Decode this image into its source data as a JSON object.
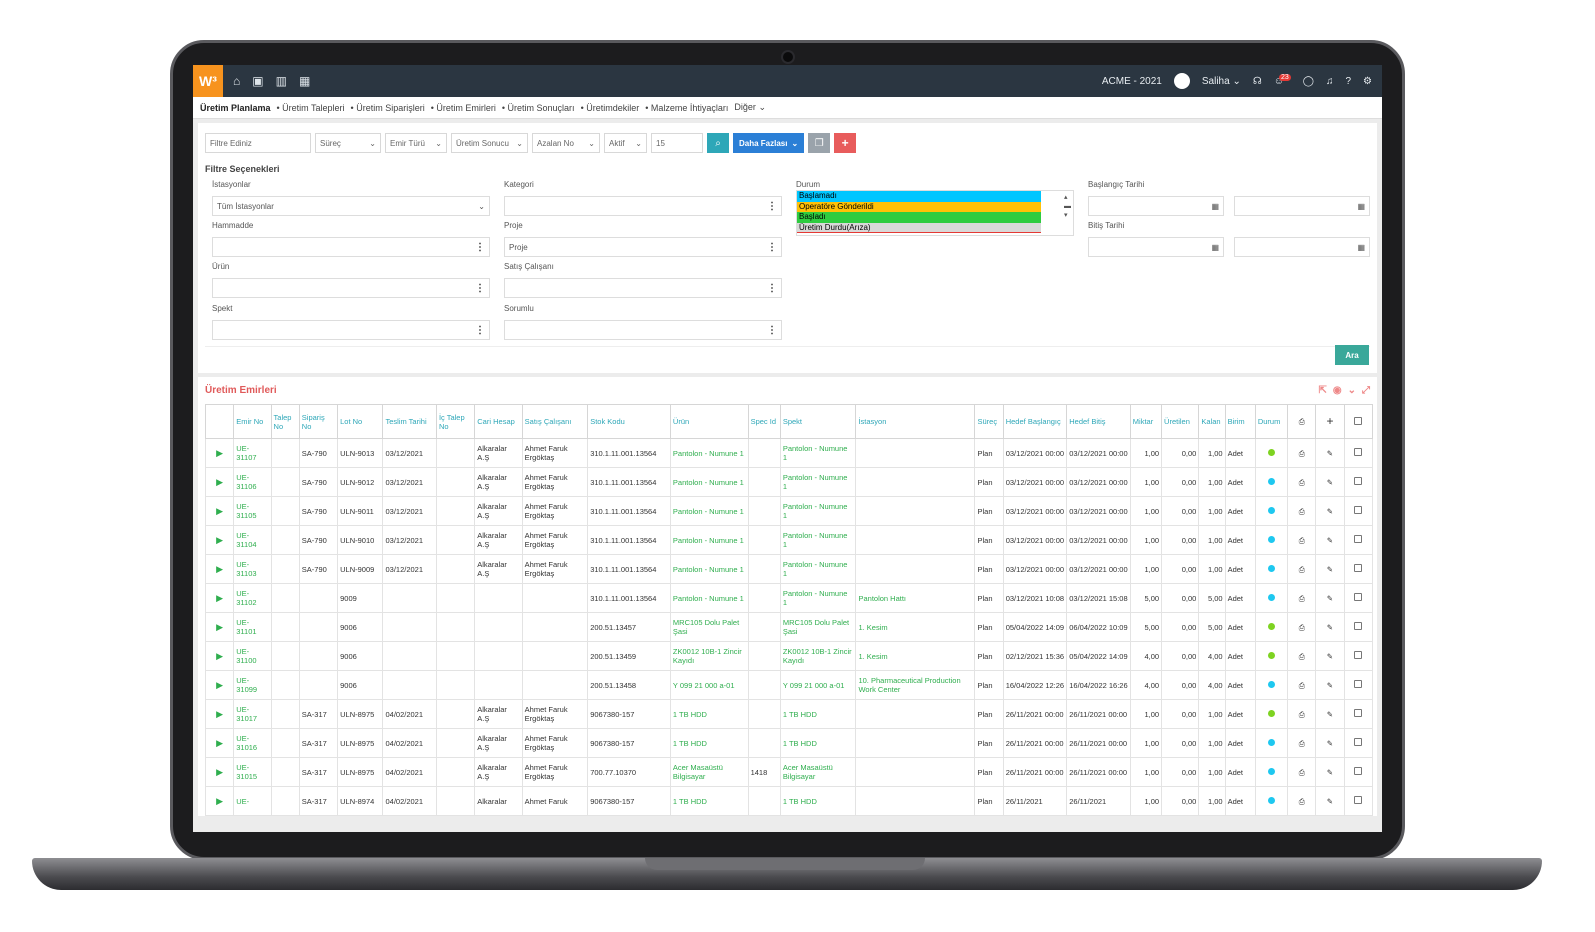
{
  "app": {
    "logo": "W³",
    "company": "ACME - 2021",
    "user": "Saliha",
    "notification_count": "23"
  },
  "menu": {
    "items": [
      "Üretim Planlama",
      "• Üretim Talepleri",
      "• Üretim Siparişleri",
      "• Üretim Emirleri",
      "• Üretim Sonuçları",
      "• Üretimdekiler",
      "• Malzeme İhtiyaçları",
      "Diğer"
    ]
  },
  "filterbar": {
    "placeholder": "Filtre Ediniz",
    "surec": "Süreç",
    "emir_turu": "Emir Türü",
    "uretim_sonucu": "Üretim Sonucu",
    "siralama": "Azalan No",
    "aktif": "Aktif",
    "kayit": "15",
    "more_label": "Daha Fazlası"
  },
  "filter_options": {
    "title": "Filtre Seçenekleri",
    "istasyonlar_label": "İstasyonlar",
    "istasyonlar_value": "Tüm İstasyonlar",
    "hammadde_label": "Hammadde",
    "urun_label": "Ürün",
    "spekt_label": "Spekt",
    "kategori_label": "Kategori",
    "proje_label": "Proje",
    "proje_value": "Proje",
    "satis_label": "Satış Çalışanı",
    "sorumlu_label": "Sorumlu",
    "durum_label": "Durum",
    "durum_options": [
      {
        "label": "Başlamadı",
        "color": "#00c6ff"
      },
      {
        "label": "Operatöre Gönderildi",
        "color": "#ffc107"
      },
      {
        "label": "Başladı",
        "color": "#2ecc40"
      },
      {
        "label": "Üretim Durdu(Arıza)",
        "color": "#d9d9d9"
      }
    ],
    "baslangic_label": "Başlangıç Tarihi",
    "bitis_label": "Bitiş Tarihi",
    "ara_label": "Ara"
  },
  "grid": {
    "title": "Üretim Emirleri",
    "columns": [
      "",
      "Emir No",
      "Talep No",
      "Sipariş No",
      "Lot No",
      "Teslim Tarihi",
      "İç Talep No",
      "Cari Hesap",
      "Satış Çalışanı",
      "Stok Kodu",
      "Ürün",
      "Spec Id",
      "Spekt",
      "İstasyon",
      "Süreç",
      "Hedef Başlangıç",
      "Hedef Bitiş",
      "Miktar",
      "Üretilen",
      "Kalan",
      "Birim",
      "Durum",
      "",
      "",
      ""
    ],
    "rows": [
      [
        "UE-31107",
        "",
        "SA-790",
        "ULN-9013",
        "03/12/2021",
        "",
        "Alkaralar A.Ş",
        "Ahmet Faruk Ergöktaş",
        "310.1.11.001.13564",
        "Pantolon - Numune 1",
        "",
        "Pantolon - Numune 1",
        "",
        "Plan",
        "03/12/2021 00:00",
        "03/12/2021 00:00",
        "1,00",
        "0,00",
        "1,00",
        "Adet",
        "#7ed321"
      ],
      [
        "UE-31106",
        "",
        "SA-790",
        "ULN-9012",
        "03/12/2021",
        "",
        "Alkaralar A.Ş",
        "Ahmet Faruk Ergöktaş",
        "310.1.11.001.13564",
        "Pantolon - Numune 1",
        "",
        "Pantolon - Numune 1",
        "",
        "Plan",
        "03/12/2021 00:00",
        "03/12/2021 00:00",
        "1,00",
        "0,00",
        "1,00",
        "Adet",
        "#1ec8f0"
      ],
      [
        "UE-31105",
        "",
        "SA-790",
        "ULN-9011",
        "03/12/2021",
        "",
        "Alkaralar A.Ş",
        "Ahmet Faruk Ergöktaş",
        "310.1.11.001.13564",
        "Pantolon - Numune 1",
        "",
        "Pantolon - Numune 1",
        "",
        "Plan",
        "03/12/2021 00:00",
        "03/12/2021 00:00",
        "1,00",
        "0,00",
        "1,00",
        "Adet",
        "#1ec8f0"
      ],
      [
        "UE-31104",
        "",
        "SA-790",
        "ULN-9010",
        "03/12/2021",
        "",
        "Alkaralar A.Ş",
        "Ahmet Faruk Ergöktaş",
        "310.1.11.001.13564",
        "Pantolon - Numune 1",
        "",
        "Pantolon - Numune 1",
        "",
        "Plan",
        "03/12/2021 00:00",
        "03/12/2021 00:00",
        "1,00",
        "0,00",
        "1,00",
        "Adet",
        "#1ec8f0"
      ],
      [
        "UE-31103",
        "",
        "SA-790",
        "ULN-9009",
        "03/12/2021",
        "",
        "Alkaralar A.Ş",
        "Ahmet Faruk Ergöktaş",
        "310.1.11.001.13564",
        "Pantolon - Numune 1",
        "",
        "Pantolon - Numune 1",
        "",
        "Plan",
        "03/12/2021 00:00",
        "03/12/2021 00:00",
        "1,00",
        "0,00",
        "1,00",
        "Adet",
        "#1ec8f0"
      ],
      [
        "UE-31102",
        "",
        "",
        "9009",
        "",
        "",
        "",
        "",
        "310.1.11.001.13564",
        "Pantolon - Numune 1",
        "",
        "Pantolon - Numune 1",
        "Pantolon Hattı",
        "Plan",
        "03/12/2021 10:08",
        "03/12/2021 15:08",
        "5,00",
        "0,00",
        "5,00",
        "Adet",
        "#1ec8f0"
      ],
      [
        "UE-31101",
        "",
        "",
        "9006",
        "",
        "",
        "",
        "",
        "200.51.13457",
        "MRC105 Dolu Palet Şasi",
        "",
        "MRC105 Dolu Palet Şasi",
        "1. Kesim",
        "Plan",
        "05/04/2022 14:09",
        "06/04/2022 10:09",
        "5,00",
        "0,00",
        "5,00",
        "Adet",
        "#7ed321"
      ],
      [
        "UE-31100",
        "",
        "",
        "9006",
        "",
        "",
        "",
        "",
        "200.51.13459",
        "ZK0012 10B-1 Zincir Kayıdı",
        "",
        "ZK0012 10B-1 Zincir Kayıdı",
        "1. Kesim",
        "Plan",
        "02/12/2021 15:36",
        "05/04/2022 14:09",
        "4,00",
        "0,00",
        "4,00",
        "Adet",
        "#7ed321"
      ],
      [
        "UE-31099",
        "",
        "",
        "9006",
        "",
        "",
        "",
        "",
        "200.51.13458",
        "Y 099 21 000 a-01",
        "",
        "Y 099 21 000 a-01",
        "10. Pharmaceutical Production Work Center",
        "Plan",
        "16/04/2022 12:26",
        "16/04/2022 16:26",
        "4,00",
        "0,00",
        "4,00",
        "Adet",
        "#1ec8f0"
      ],
      [
        "UE-31017",
        "",
        "SA-317",
        "ULN-8975",
        "04/02/2021",
        "",
        "Alkaralar A.Ş",
        "Ahmet Faruk Ergöktaş",
        "9067380-157",
        "1 TB HDD",
        "",
        "1 TB HDD",
        "",
        "Plan",
        "26/11/2021 00:00",
        "26/11/2021 00:00",
        "1,00",
        "0,00",
        "1,00",
        "Adet",
        "#7ed321"
      ],
      [
        "UE-31016",
        "",
        "SA-317",
        "ULN-8975",
        "04/02/2021",
        "",
        "Alkaralar A.Ş",
        "Ahmet Faruk Ergöktaş",
        "9067380-157",
        "1 TB HDD",
        "",
        "1 TB HDD",
        "",
        "Plan",
        "26/11/2021 00:00",
        "26/11/2021 00:00",
        "1,00",
        "0,00",
        "1,00",
        "Adet",
        "#1ec8f0"
      ],
      [
        "UE-31015",
        "",
        "SA-317",
        "ULN-8975",
        "04/02/2021",
        "",
        "Alkaralar A.Ş",
        "Ahmet Faruk Ergöktaş",
        "700.77.10370",
        "Acer Masaüstü Bilgisayar",
        "1418",
        "Acer Masaüstü Bilgisayar",
        "",
        "Plan",
        "26/11/2021 00:00",
        "26/11/2021 00:00",
        "1,00",
        "0,00",
        "1,00",
        "Adet",
        "#1ec8f0"
      ],
      [
        "UE-",
        "",
        "SA-317",
        "ULN-8974",
        "04/02/2021",
        "",
        "Alkaralar",
        "Ahmet Faruk",
        "9067380-157",
        "1 TB HDD",
        "",
        "1 TB HDD",
        "",
        "Plan",
        "26/11/2021",
        "26/11/2021",
        "1,00",
        "0,00",
        "1,00",
        "Adet",
        "#1ec8f0"
      ]
    ]
  }
}
